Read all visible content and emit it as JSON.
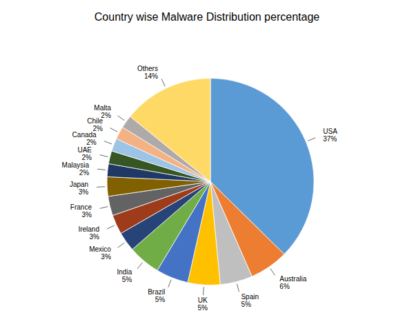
{
  "chart_data": {
    "type": "pie",
    "title": "Country wise Malware Distribution percentage",
    "categories": [
      "USA",
      "Australia",
      "Spain",
      "UK",
      "Brazil",
      "India",
      "Mexico",
      "Ireland",
      "France",
      "Japan",
      "Malaysia",
      "UAE",
      "Canada",
      "Chile",
      "Malta",
      "Others"
    ],
    "values": [
      37,
      6,
      5,
      5,
      5,
      5,
      3,
      3,
      3,
      3,
      2,
      2,
      2,
      2,
      2,
      14
    ],
    "value_labels": [
      "37%",
      "6%",
      "5%",
      "5%",
      "5%",
      "5%",
      "3%",
      "3%",
      "3%",
      "3%",
      "2%",
      "2%",
      "2%",
      "2%",
      "2%",
      "14%"
    ],
    "colors": [
      "#5B9BD5",
      "#ED7D31",
      "#BFBFBF",
      "#FFC000",
      "#4472C4",
      "#70AD47",
      "#264478",
      "#9E3B1B",
      "#636363",
      "#806000",
      "#1F3864",
      "#375623",
      "#9DC3E6",
      "#F4B183",
      "#AEAAAA",
      "#FFD966"
    ],
    "data_labels": true
  }
}
